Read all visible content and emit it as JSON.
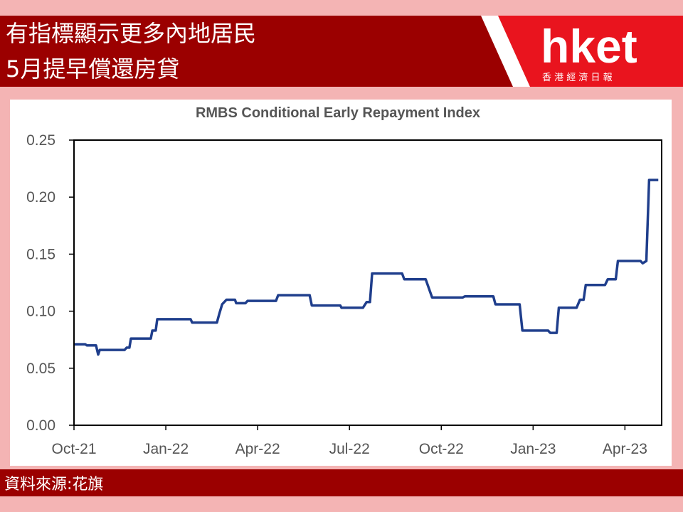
{
  "header": {
    "title_lines": [
      "有指標顯示更多內地居民",
      "5月提早償還房貸"
    ]
  },
  "logo": {
    "name": "hket",
    "tagline": "香 港 經 濟 日 報"
  },
  "chart_data": {
    "type": "line",
    "title": "RMBS Conditional Early Repayment Index",
    "x": [
      0,
      0.37,
      0.42,
      0.72,
      0.79,
      0.84,
      1.65,
      1.72,
      1.81,
      1.86,
      2.51,
      2.56,
      2.67,
      2.72,
      3.81,
      3.86,
      4.67,
      4.74,
      4.84,
      4.98,
      5.26,
      5.3,
      5.6,
      5.67,
      6.6,
      6.67,
      7.7,
      7.77,
      8.7,
      8.74,
      9.44,
      9.56,
      9.67,
      9.74,
      10.72,
      10.79,
      11.49,
      11.7,
      12.7,
      12.77,
      13.7,
      13.77,
      14.56,
      14.65,
      15.49,
      15.56,
      15.77,
      15.84,
      16.42,
      16.53,
      16.65,
      16.72,
      17.35,
      17.44,
      17.7,
      17.77,
      18.51,
      18.58,
      18.7,
      18.79,
      19.09
    ],
    "series": [
      {
        "color": "#1f3e8c",
        "values": [
          0.071,
          0.071,
          0.07,
          0.07,
          0.062,
          0.066,
          0.066,
          0.068,
          0.068,
          0.076,
          0.076,
          0.083,
          0.083,
          0.093,
          0.093,
          0.09,
          0.09,
          0.097,
          0.106,
          0.11,
          0.11,
          0.107,
          0.107,
          0.109,
          0.109,
          0.114,
          0.114,
          0.105,
          0.105,
          0.103,
          0.103,
          0.108,
          0.108,
          0.133,
          0.133,
          0.128,
          0.128,
          0.112,
          0.112,
          0.113,
          0.113,
          0.106,
          0.106,
          0.083,
          0.083,
          0.081,
          0.081,
          0.103,
          0.103,
          0.11,
          0.11,
          0.123,
          0.123,
          0.128,
          0.128,
          0.144,
          0.144,
          0.142,
          0.144,
          0.215,
          0.215
        ]
      }
    ],
    "xlim": [
      0,
      19.2
    ],
    "xticks": [
      {
        "value": 0,
        "label": "Oct-21"
      },
      {
        "value": 3,
        "label": "Jan-22"
      },
      {
        "value": 6,
        "label": "Apr-22"
      },
      {
        "value": 9,
        "label": "Jul-22"
      },
      {
        "value": 12,
        "label": "Oct-22"
      },
      {
        "value": 15,
        "label": "Jan-23"
      },
      {
        "value": 18,
        "label": "Apr-23"
      }
    ],
    "ylim": [
      0,
      0.25
    ],
    "yticks": [
      {
        "value": 0,
        "label": "0.00"
      },
      0.05,
      {
        "value": 0.1,
        "label": "0.10"
      },
      0.15,
      {
        "value": 0.2,
        "label": "0.20"
      },
      0.25
    ]
  },
  "footer": {
    "source": "資料來源:花旗"
  }
}
